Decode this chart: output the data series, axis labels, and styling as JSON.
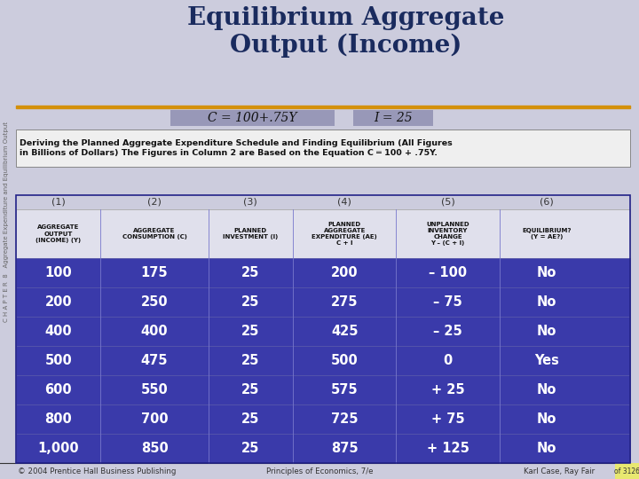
{
  "title": "Equilibrium Aggregate\nOutput (Income)",
  "title_color": "#1a2b5e",
  "bg_color": "#ccccdd",
  "orange_line_color": "#d4900a",
  "formula1": "C = 100+.75Y",
  "formula2": "I = 25",
  "formula_bg": "#9898b8",
  "caption": "Deriving the Planned Aggregate Expenditure Schedule and Finding Equilibrium (All Figures\nin Billions of Dollars) The Figures in Column 2 are Based on the Equation C ═ 100 + .75Y.",
  "col_numbers": [
    "(1)",
    "(2)",
    "(3)",
    "(4)",
    "(5)",
    "(6)"
  ],
  "col_headers": [
    "AGGREGATE\nOUTPUT\n(INCOME) (Y)",
    "AGGREGATE\nCONSUMPTION (C)",
    "PLANNED\nINVESTMENT (I)",
    "PLANNED\nAGGREGATE\nEXPENDITURE (AE)\nC + I",
    "UNPLANNED\nINVENTORY\nCHANGE\nY – (C + I)",
    "EQUILIBRIUM?\n(Y = AE?)"
  ],
  "table_data": [
    [
      "100",
      "175",
      "25",
      "200",
      "– 100",
      "No"
    ],
    [
      "200",
      "250",
      "25",
      "275",
      "– 75",
      "No"
    ],
    [
      "400",
      "400",
      "25",
      "425",
      "– 25",
      "No"
    ],
    [
      "500",
      "475",
      "25",
      "500",
      "0",
      "Yes"
    ],
    [
      "600",
      "550",
      "25",
      "575",
      "+ 25",
      "No"
    ],
    [
      "800",
      "700",
      "25",
      "725",
      "+ 75",
      "No"
    ],
    [
      "1,000",
      "850",
      "25",
      "875",
      "+ 125",
      "No"
    ]
  ],
  "table_bg": "#3a3aaa",
  "table_text_color": "#ffffff",
  "header_bg": "#e0e0ec",
  "header_text_color": "#111111",
  "footer_left": "© 2004 Prentice Hall Business Publishing",
  "footer_center": "Principles of Economics, 7/e",
  "footer_right": "Karl Case, Ray Fair",
  "footer_page": "of 3126",
  "footer_page_bg": "#e8e870",
  "sidebar_text": "C H A P T E R  8   Aggregate Expenditure and Equilibrium Output",
  "sidebar_color": "#666666"
}
